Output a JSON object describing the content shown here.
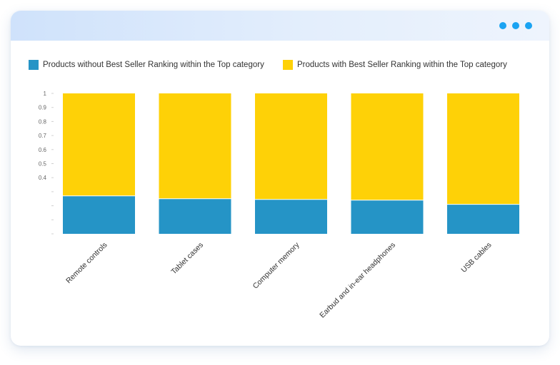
{
  "window": {
    "controls": [
      "dot",
      "dot",
      "dot"
    ],
    "accent_color": "#1aa3f2"
  },
  "chart_data": {
    "type": "bar",
    "stacked": true,
    "categories": [
      "Remote controls",
      "Tablet cases",
      "Computer memory",
      "Earbud and in-ear headphones",
      "USB cables"
    ],
    "series": [
      {
        "name": "Products without Best Seller Ranking within the Top category",
        "color": "#2594c6",
        "values": [
          0.27,
          0.25,
          0.245,
          0.24,
          0.21
        ]
      },
      {
        "name": "Products with Best Seller Ranking within the Top category",
        "color": "#fed107",
        "values": [
          0.73,
          0.75,
          0.755,
          0.76,
          0.79
        ]
      }
    ],
    "ylim": [
      0,
      1
    ],
    "y_ticks": [
      {
        "value": 1,
        "label": "1"
      },
      {
        "value": 0.9,
        "label": "0.9"
      },
      {
        "value": 0.8,
        "label": "0.8"
      },
      {
        "value": 0.7,
        "label": "0.7"
      },
      {
        "value": 0.6,
        "label": "0.6"
      },
      {
        "value": 0.5,
        "label": "0.5"
      },
      {
        "value": 0.4,
        "label": "0.4"
      },
      {
        "value": 0.3,
        "label": ""
      },
      {
        "value": 0.2,
        "label": ""
      },
      {
        "value": 0.1,
        "label": ""
      },
      {
        "value": 0,
        "label": ""
      }
    ],
    "title": "",
    "xlabel": "",
    "ylabel": "",
    "legend_position": "top",
    "grid": false
  }
}
